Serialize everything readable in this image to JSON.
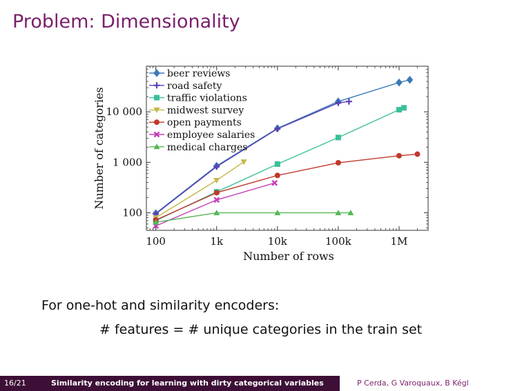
{
  "slide": {
    "title": "Problem: Dimensionality",
    "bullet": "For one-hot and similarity encoders:",
    "formula": "# features = # unique categories in the train set"
  },
  "footer": {
    "page": "16/21",
    "title": "Similarity encoding for learning with dirty categorical variables",
    "authors": "P Cerda, G Varoquaux, B Kégl"
  },
  "colors": {
    "title": "#7a1f6b",
    "footer_bar": "#3d0f36"
  },
  "chart_data": {
    "type": "line",
    "xscale": "log",
    "yscale": "log",
    "xlabel": "Number of rows",
    "ylabel": "Number of categories",
    "xlim": [
      70,
      3000000
    ],
    "ylim": [
      45,
      80000
    ],
    "xticks": [
      {
        "value": 100,
        "label": "100"
      },
      {
        "value": 1000,
        "label": "1k"
      },
      {
        "value": 10000,
        "label": "10k"
      },
      {
        "value": 100000,
        "label": "100k"
      },
      {
        "value": 1000000,
        "label": "1M"
      }
    ],
    "yticks": [
      {
        "value": 100,
        "label": "100"
      },
      {
        "value": 1000,
        "label": "1 000"
      },
      {
        "value": 10000,
        "label": "10 000"
      }
    ],
    "legend_position": "top-left",
    "series": [
      {
        "name": "beer reviews",
        "color": "#3a7ab8",
        "marker": "diamond",
        "x": [
          100,
          1000,
          10000,
          100000,
          1000000,
          1500000
        ],
        "y": [
          98,
          850,
          4700,
          16000,
          38000,
          43000
        ]
      },
      {
        "name": "road safety",
        "color": "#5b3fb5",
        "marker": "plus",
        "x": [
          100,
          1000,
          10000,
          100000,
          150000
        ],
        "y": [
          95,
          820,
          4600,
          15000,
          16000
        ]
      },
      {
        "name": "traffic violations",
        "color": "#3bbf9a",
        "marker": "square",
        "x": [
          100,
          1000,
          10000,
          100000,
          1000000,
          1200000
        ],
        "y": [
          70,
          260,
          920,
          3100,
          11000,
          12000
        ]
      },
      {
        "name": "midwest survey",
        "color": "#c4b84a",
        "marker": "triangle-down",
        "x": [
          100,
          1000,
          2800
        ],
        "y": [
          80,
          440,
          1020
        ]
      },
      {
        "name": "open payments",
        "color": "#c0392b",
        "marker": "circle",
        "x": [
          100,
          1000,
          10000,
          100000,
          1000000,
          2000000
        ],
        "y": [
          72,
          250,
          550,
          980,
          1350,
          1450
        ]
      },
      {
        "name": "employee salaries",
        "color": "#c23db8",
        "marker": "x",
        "x": [
          100,
          1000,
          9000
        ],
        "y": [
          55,
          180,
          390
        ]
      },
      {
        "name": "medical charges",
        "color": "#55b855",
        "marker": "triangle-up",
        "x": [
          100,
          1000,
          10000,
          100000,
          160000
        ],
        "y": [
          65,
          100,
          100,
          100,
          100
        ]
      }
    ]
  }
}
